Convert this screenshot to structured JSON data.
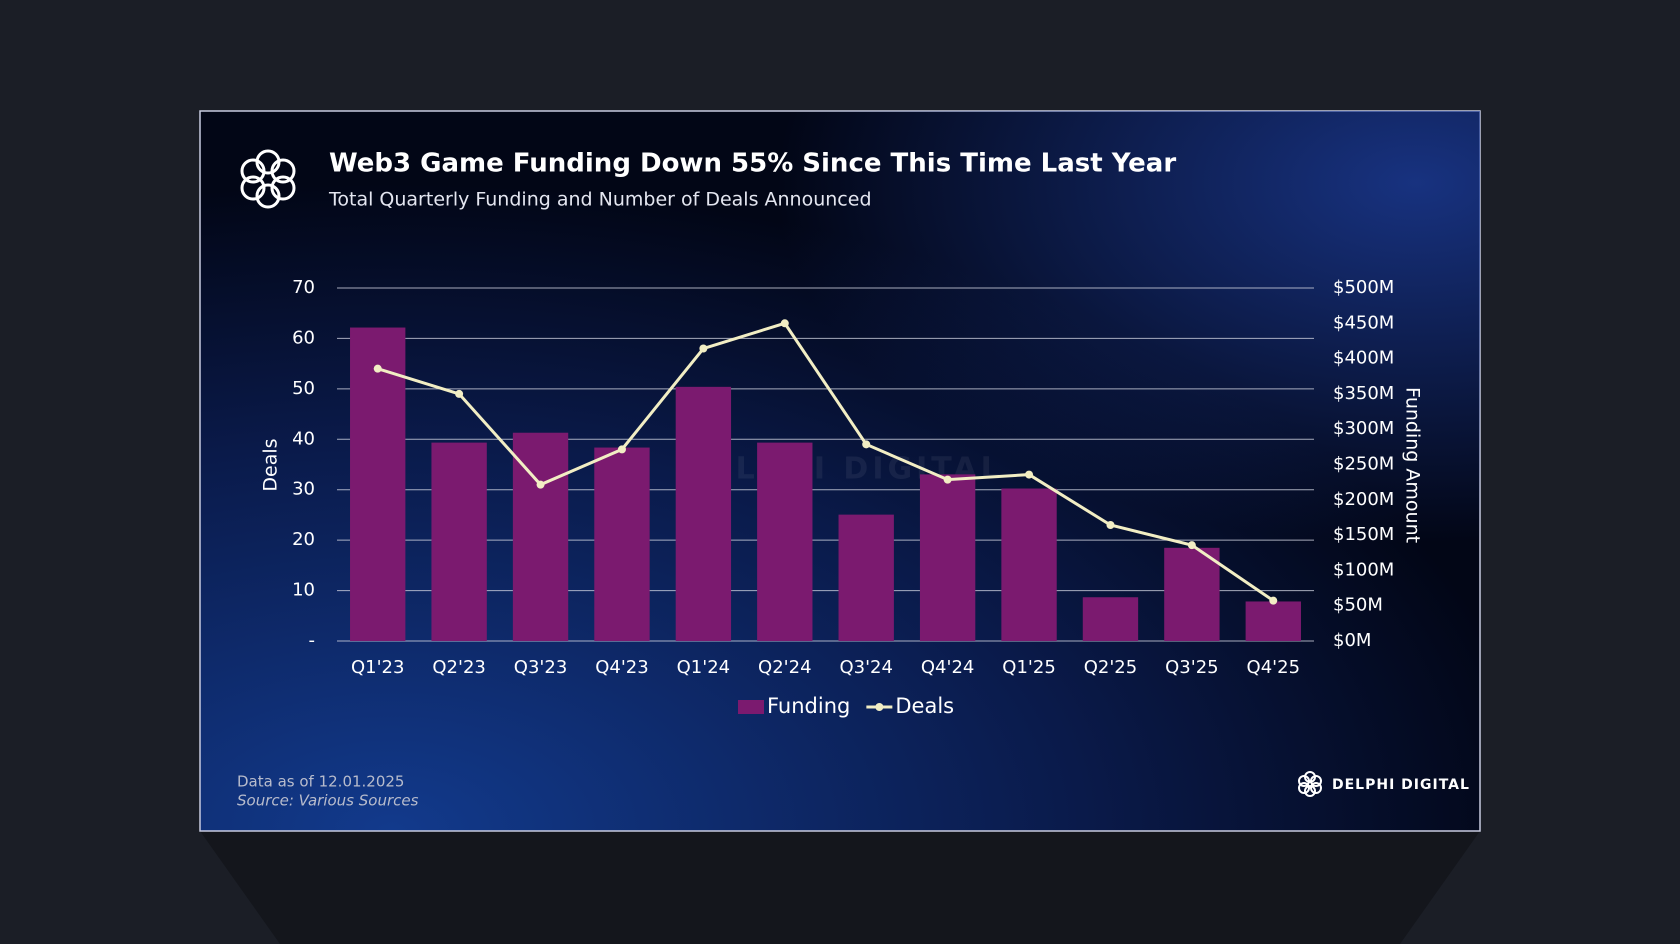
{
  "chart_data": {
    "type": "combo",
    "title": "Web3 Game Funding Down 55% Since This Time Last Year",
    "subtitle": "Total Quarterly Funding and Number of Deals Announced",
    "y_label": "Deals",
    "y2_label": "Funding Amount",
    "categories": [
      "Q1'23",
      "Q2'23",
      "Q3'23",
      "Q4'23",
      "Q1'24",
      "Q2'24",
      "Q3'24",
      "Q4'24",
      "Q1'25",
      "Q2'25",
      "Q3'25",
      "Q4'25"
    ],
    "series": [
      {
        "name": "Funding",
        "type": "bar",
        "axis": "y2",
        "color": "#7b1a6f",
        "values": [
          444,
          281,
          295,
          274,
          360,
          281,
          179,
          236,
          216,
          62,
          132,
          56
        ]
      },
      {
        "name": "Deals",
        "type": "line",
        "color": "#f2eec4",
        "values": [
          54,
          49,
          31,
          38,
          58,
          63,
          39,
          32,
          33,
          23,
          19,
          8
        ]
      }
    ],
    "ylim": [
      0,
      70
    ],
    "yticks": [
      {
        "value": 0,
        "label": "-"
      },
      10,
      20,
      30,
      40,
      50,
      60,
      70
    ],
    "y2lim": [
      0,
      500
    ],
    "y2ticks": [
      {
        "value": 0,
        "label": "$0M"
      },
      {
        "value": 50,
        "label": "$50M"
      },
      {
        "value": 100,
        "label": "$100M"
      },
      {
        "value": 150,
        "label": "$150M"
      },
      {
        "value": 200,
        "label": "$200M"
      },
      {
        "value": 250,
        "label": "$250M"
      },
      {
        "value": 300,
        "label": "$300M"
      },
      {
        "value": 350,
        "label": "$350M"
      },
      {
        "value": 400,
        "label": "$400M"
      },
      {
        "value": 450,
        "label": "$450M"
      },
      {
        "value": 500,
        "label": "$500M"
      }
    ],
    "grid": true,
    "legend": "bottom",
    "footnote": "Data as of 12.01.2025",
    "source": "Source: Various Sources",
    "brand": "DELPHI DIGITAL"
  }
}
